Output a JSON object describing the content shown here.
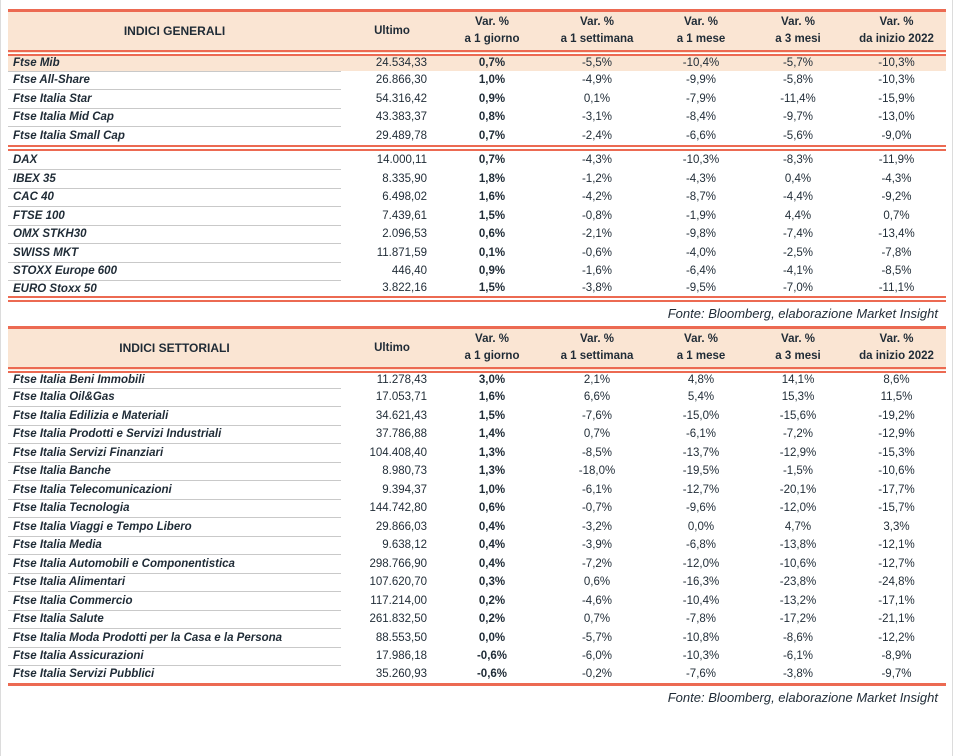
{
  "colors": {
    "accent_red": "#EC6A52",
    "header_bg": "#FAE5D3",
    "highlight_row_bg": "#FAE5D3",
    "text": "#1F2B36",
    "row_divider": "#C9C9C9"
  },
  "source_note": "Fonte: Bloomberg, elaborazione Market Insight",
  "var_header": "Var. %",
  "tables": [
    {
      "title": "INDICI GENERALI",
      "ultimo_header": "Ultimo",
      "period_headers": [
        "a 1 giorno",
        "a 1 settimana",
        "a 1 mese",
        "a 3 mesi",
        "da inizio 2022"
      ],
      "groups": [
        {
          "rows": [
            {
              "name": "Ftse Mib",
              "ultimo": "24.534,33",
              "vars": [
                "0,7%",
                "-5,5%",
                "-10,4%",
                "-5,7%",
                "-10,3%"
              ],
              "highlight": true
            },
            {
              "name": "Ftse All-Share",
              "ultimo": "26.866,30",
              "vars": [
                "1,0%",
                "-4,9%",
                "-9,9%",
                "-5,8%",
                "-10,3%"
              ]
            },
            {
              "name": "Ftse Italia Star",
              "ultimo": "54.316,42",
              "vars": [
                "0,9%",
                "0,1%",
                "-7,9%",
                "-11,4%",
                "-15,9%"
              ]
            },
            {
              "name": "Ftse Italia Mid Cap",
              "ultimo": "43.383,37",
              "vars": [
                "0,8%",
                "-3,1%",
                "-8,4%",
                "-9,7%",
                "-13,0%"
              ]
            },
            {
              "name": "Ftse Italia Small Cap",
              "ultimo": "29.489,78",
              "vars": [
                "0,7%",
                "-2,4%",
                "-6,6%",
                "-5,6%",
                "-9,0%"
              ]
            }
          ]
        },
        {
          "rows": [
            {
              "name": "DAX",
              "ultimo": "14.000,11",
              "vars": [
                "0,7%",
                "-4,3%",
                "-10,3%",
                "-8,3%",
                "-11,9%"
              ]
            },
            {
              "name": "IBEX 35",
              "ultimo": "8.335,90",
              "vars": [
                "1,8%",
                "-1,2%",
                "-4,3%",
                "0,4%",
                "-4,3%"
              ]
            },
            {
              "name": "CAC 40",
              "ultimo": "6.498,02",
              "vars": [
                "1,6%",
                "-4,2%",
                "-8,7%",
                "-4,4%",
                "-9,2%"
              ]
            },
            {
              "name": "FTSE 100",
              "ultimo": "7.439,61",
              "vars": [
                "1,5%",
                "-0,8%",
                "-1,9%",
                "4,4%",
                "0,7%"
              ]
            },
            {
              "name": "OMX STKH30",
              "ultimo": "2.096,53",
              "vars": [
                "0,6%",
                "-2,1%",
                "-9,8%",
                "-7,4%",
                "-13,4%"
              ]
            },
            {
              "name": "SWISS MKT",
              "ultimo": "11.871,59",
              "vars": [
                "0,1%",
                "-0,6%",
                "-4,0%",
                "-2,5%",
                "-7,8%"
              ]
            },
            {
              "name": "STOXX Europe 600",
              "ultimo": "446,40",
              "vars": [
                "0,9%",
                "-1,6%",
                "-6,4%",
                "-4,1%",
                "-8,5%"
              ]
            },
            {
              "name": "EURO Stoxx 50",
              "ultimo": "3.822,16",
              "vars": [
                "1,5%",
                "-3,8%",
                "-9,5%",
                "-7,0%",
                "-11,1%"
              ]
            }
          ]
        }
      ]
    },
    {
      "title": "INDICI SETTORIALI",
      "ultimo_header": "Ultimo",
      "period_headers": [
        "a 1 giorno",
        "a 1 settimana",
        "a 1 mese",
        "a 3 mesi",
        "da inizio 2022"
      ],
      "groups": [
        {
          "rows": [
            {
              "name": "Ftse Italia Beni Immobili",
              "ultimo": "11.278,43",
              "vars": [
                "3,0%",
                "2,1%",
                "4,8%",
                "14,1%",
                "8,6%"
              ]
            },
            {
              "name": "Ftse Italia Oil&Gas",
              "ultimo": "17.053,71",
              "vars": [
                "1,6%",
                "6,6%",
                "5,4%",
                "15,3%",
                "11,5%"
              ]
            },
            {
              "name": "Ftse Italia Edilizia e Materiali",
              "ultimo": "34.621,43",
              "vars": [
                "1,5%",
                "-7,6%",
                "-15,0%",
                "-15,6%",
                "-19,2%"
              ]
            },
            {
              "name": "Ftse Italia Prodotti e Servizi Industriali",
              "ultimo": "37.786,88",
              "vars": [
                "1,4%",
                "0,7%",
                "-6,1%",
                "-7,2%",
                "-12,9%"
              ]
            },
            {
              "name": "Ftse Italia Servizi Finanziari",
              "ultimo": "104.408,40",
              "vars": [
                "1,3%",
                "-8,5%",
                "-13,7%",
                "-12,9%",
                "-15,3%"
              ]
            },
            {
              "name": "Ftse Italia Banche",
              "ultimo": "8.980,73",
              "vars": [
                "1,3%",
                "-18,0%",
                "-19,5%",
                "-1,5%",
                "-10,6%"
              ]
            },
            {
              "name": "Ftse Italia Telecomunicazioni",
              "ultimo": "9.394,37",
              "vars": [
                "1,0%",
                "-6,1%",
                "-12,7%",
                "-20,1%",
                "-17,7%"
              ]
            },
            {
              "name": "Ftse Italia Tecnologia",
              "ultimo": "144.742,80",
              "vars": [
                "0,6%",
                "-0,7%",
                "-9,6%",
                "-12,0%",
                "-15,7%"
              ]
            },
            {
              "name": "Ftse Italia Viaggi e Tempo Libero",
              "ultimo": "29.866,03",
              "vars": [
                "0,4%",
                "-3,2%",
                "0,0%",
                "4,7%",
                "3,3%"
              ]
            },
            {
              "name": "Ftse Italia Media",
              "ultimo": "9.638,12",
              "vars": [
                "0,4%",
                "-3,9%",
                "-6,8%",
                "-13,8%",
                "-12,1%"
              ]
            },
            {
              "name": "Ftse Italia Automobili e Componentistica",
              "ultimo": "298.766,90",
              "vars": [
                "0,4%",
                "-7,2%",
                "-12,0%",
                "-10,6%",
                "-12,7%"
              ]
            },
            {
              "name": "Ftse Italia Alimentari",
              "ultimo": "107.620,70",
              "vars": [
                "0,3%",
                "0,6%",
                "-16,3%",
                "-23,8%",
                "-24,8%"
              ]
            },
            {
              "name": "Ftse Italia Commercio",
              "ultimo": "117.214,00",
              "vars": [
                "0,2%",
                "-4,6%",
                "-10,4%",
                "-13,2%",
                "-17,1%"
              ]
            },
            {
              "name": "Ftse Italia Salute",
              "ultimo": "261.832,50",
              "vars": [
                "0,2%",
                "0,7%",
                "-7,8%",
                "-17,2%",
                "-21,1%"
              ]
            },
            {
              "name": "Ftse Italia Moda Prodotti per la Casa e la Persona",
              "ultimo": "88.553,50",
              "vars": [
                "0,0%",
                "-5,7%",
                "-10,8%",
                "-8,6%",
                "-12,2%"
              ]
            },
            {
              "name": "Ftse Italia Assicurazioni",
              "ultimo": "17.986,18",
              "vars": [
                "-0,6%",
                "-6,0%",
                "-10,3%",
                "-6,1%",
                "-8,9%"
              ]
            },
            {
              "name": "Ftse Italia Servizi Pubblici",
              "ultimo": "35.260,93",
              "vars": [
                "-0,6%",
                "-0,2%",
                "-7,6%",
                "-3,8%",
                "-9,7%"
              ]
            }
          ]
        }
      ]
    }
  ]
}
